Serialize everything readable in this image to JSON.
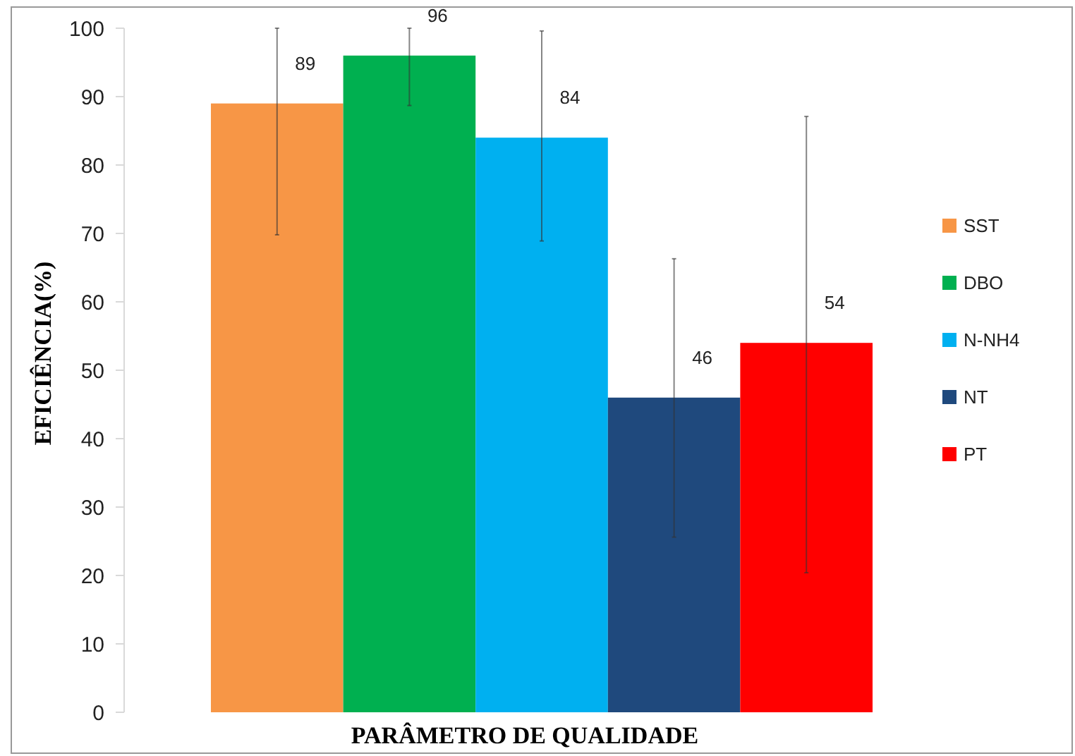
{
  "chart_data": {
    "type": "bar",
    "xlabel": "PARÂMETRO DE QUALIDADE",
    "ylabel": "EFICIÊNCIA(%)",
    "categories": [
      null
    ],
    "series": [
      {
        "name": "SST",
        "color": "#f79646",
        "values": [
          89
        ],
        "errors": [
          [
            69.8,
            100
          ]
        ]
      },
      {
        "name": "DBO",
        "color": "#00b050",
        "values": [
          96
        ],
        "errors": [
          [
            88.7,
            100
          ]
        ]
      },
      {
        "name": "N-NH4",
        "color": "#00b0f0",
        "values": [
          84
        ],
        "errors": [
          [
            68.9,
            99.6
          ]
        ]
      },
      {
        "name": "NT",
        "color": "#1f497d",
        "values": [
          46
        ],
        "errors": [
          [
            25.6,
            66.3
          ]
        ]
      },
      {
        "name": "PT",
        "color": "#ff0000",
        "values": [
          54
        ],
        "errors": [
          [
            20.4,
            87.1
          ]
        ]
      }
    ],
    "ylim": [
      0,
      100
    ],
    "yticks": [
      0,
      10,
      20,
      30,
      40,
      50,
      60,
      70,
      80,
      90,
      100
    ],
    "data_labels": true,
    "legend": "right",
    "grid": false
  }
}
